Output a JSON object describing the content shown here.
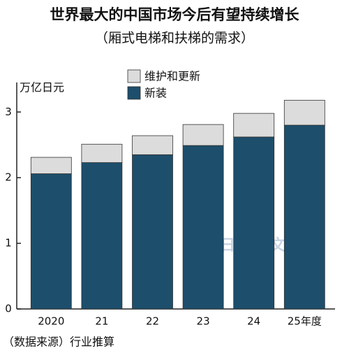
{
  "chart_data": {
    "type": "stacked-bar",
    "title": "世界最大的中国市场今后有望持续增长",
    "subtitle": "（厢式电梯和扶梯的需求）",
    "y_label": "万亿日元",
    "source": "（数据来源）行业推算",
    "watermark": "日经中文网",
    "categories": [
      "2020",
      "21",
      "22",
      "23",
      "24",
      "25年度"
    ],
    "series": [
      {
        "name": "新装",
        "color": "#1d4e6c",
        "values": [
          2.06,
          2.23,
          2.35,
          2.49,
          2.62,
          2.8
        ]
      },
      {
        "name": "维护和更新",
        "color": "#dcdcdc",
        "values": [
          0.25,
          0.28,
          0.29,
          0.32,
          0.36,
          0.38
        ]
      }
    ],
    "ylim": [
      0,
      3.45
    ],
    "yticks": [
      0,
      1,
      2,
      3
    ]
  }
}
